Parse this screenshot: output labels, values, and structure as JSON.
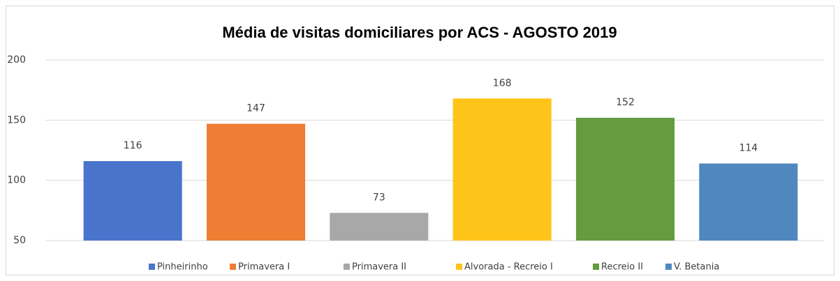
{
  "chart_data": {
    "type": "bar",
    "title": "Média de visitas domiciliares por ACS  - AGOSTO 2019",
    "series": [
      {
        "name": "Pinheirinho",
        "color": "#4a74cc",
        "values": [
          116
        ]
      },
      {
        "name": "Primavera I",
        "color": "#ef7d34",
        "values": [
          147
        ]
      },
      {
        "name": "Primavera II",
        "color": "#a8a8a8",
        "values": [
          73
        ]
      },
      {
        "name": "Alvorada - Recreio I",
        "color": "#ffc41a",
        "values": [
          168
        ]
      },
      {
        "name": "Recreio II",
        "color": "#659c3f",
        "values": [
          152
        ]
      },
      {
        "name": "V. Betania",
        "color": "#5087bf",
        "values": [
          114
        ]
      }
    ],
    "ylim": [
      50,
      200
    ],
    "yticks": [
      50,
      100,
      150,
      200
    ],
    "grid": true,
    "legend": "bottom"
  }
}
